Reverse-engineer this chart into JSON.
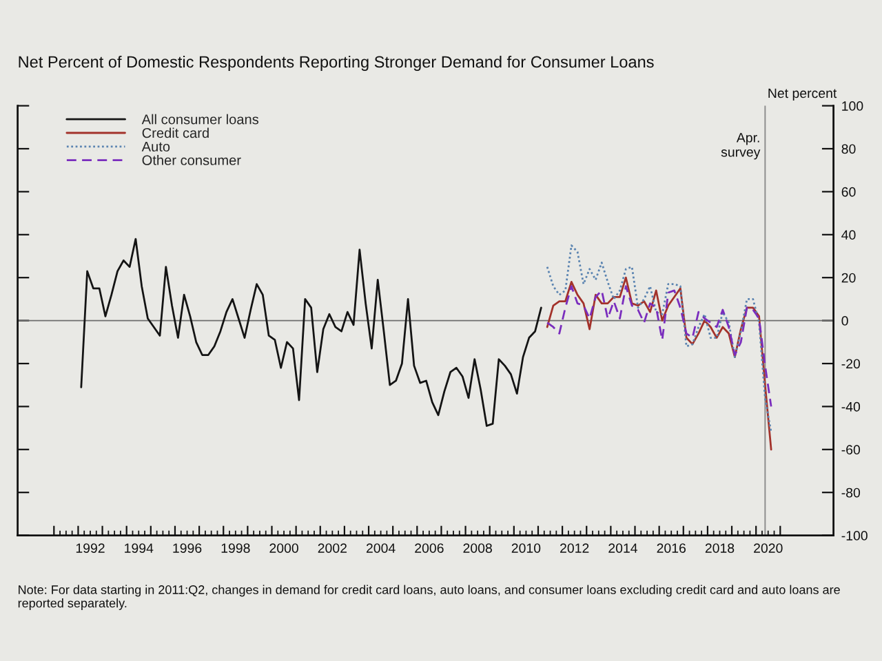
{
  "chart_data": {
    "type": "line",
    "title": "Net Percent of Domestic Respondents Reporting Stronger Demand for Consumer Loans",
    "ylabel": "Net percent",
    "annotations": [
      "Note: For data starting in 2011:Q2, changes in demand for credit card loans, auto loans, and consumer loans excluding credit card and auto loans are reported separately."
    ],
    "xlim": [
      1989.5,
      2023.2
    ],
    "xticks": [
      {
        "value": 1991,
        "label": null
      },
      {
        "value": 1991.25,
        "label": null
      },
      {
        "value": 1991.5,
        "label": null
      },
      {
        "value": 1991.75,
        "label": null
      },
      {
        "value": 1992,
        "label": null
      },
      {
        "value": 1992.25,
        "label": null
      },
      {
        "value": 1992.5,
        "label": "1992"
      },
      {
        "value": 1992.75,
        "label": null
      },
      {
        "value": 1993,
        "label": null
      },
      {
        "value": 1993.25,
        "label": null
      },
      {
        "value": 1993.5,
        "label": null
      },
      {
        "value": 1993.75,
        "label": null
      },
      {
        "value": 1994,
        "label": null
      },
      {
        "value": 1994.25,
        "label": null
      },
      {
        "value": 1994.5,
        "label": "1994"
      },
      {
        "value": 1994.75,
        "label": null
      },
      {
        "value": 1995,
        "label": null
      },
      {
        "value": 1995.25,
        "label": null
      },
      {
        "value": 1995.5,
        "label": null
      },
      {
        "value": 1995.75,
        "label": null
      },
      {
        "value": 1996,
        "label": null
      },
      {
        "value": 1996.25,
        "label": null
      },
      {
        "value": 1996.5,
        "label": "1996"
      },
      {
        "value": 1996.75,
        "label": null
      },
      {
        "value": 1997,
        "label": null
      },
      {
        "value": 1997.25,
        "label": null
      },
      {
        "value": 1997.5,
        "label": null
      },
      {
        "value": 1997.75,
        "label": null
      },
      {
        "value": 1998,
        "label": null
      },
      {
        "value": 1998.25,
        "label": null
      },
      {
        "value": 1998.5,
        "label": "1998"
      },
      {
        "value": 1998.75,
        "label": null
      },
      {
        "value": 1999,
        "label": null
      },
      {
        "value": 1999.25,
        "label": null
      },
      {
        "value": 1999.5,
        "label": null
      },
      {
        "value": 1999.75,
        "label": null
      },
      {
        "value": 2000,
        "label": null
      },
      {
        "value": 2000.25,
        "label": null
      },
      {
        "value": 2000.5,
        "label": "2000"
      },
      {
        "value": 2000.75,
        "label": null
      },
      {
        "value": 2001,
        "label": null
      },
      {
        "value": 2001.25,
        "label": null
      },
      {
        "value": 2001.5,
        "label": null
      },
      {
        "value": 2001.75,
        "label": null
      },
      {
        "value": 2002,
        "label": null
      },
      {
        "value": 2002.25,
        "label": null
      },
      {
        "value": 2002.5,
        "label": "2002"
      },
      {
        "value": 2002.75,
        "label": null
      },
      {
        "value": 2003,
        "label": null
      },
      {
        "value": 2003.25,
        "label": null
      },
      {
        "value": 2003.5,
        "label": null
      },
      {
        "value": 2003.75,
        "label": null
      },
      {
        "value": 2004,
        "label": null
      },
      {
        "value": 2004.25,
        "label": null
      },
      {
        "value": 2004.5,
        "label": "2004"
      },
      {
        "value": 2004.75,
        "label": null
      },
      {
        "value": 2005,
        "label": null
      },
      {
        "value": 2005.25,
        "label": null
      },
      {
        "value": 2005.5,
        "label": null
      },
      {
        "value": 2005.75,
        "label": null
      },
      {
        "value": 2006,
        "label": null
      },
      {
        "value": 2006.25,
        "label": null
      },
      {
        "value": 2006.5,
        "label": "2006"
      },
      {
        "value": 2006.75,
        "label": null
      },
      {
        "value": 2007,
        "label": null
      },
      {
        "value": 2007.25,
        "label": null
      },
      {
        "value": 2007.5,
        "label": null
      },
      {
        "value": 2007.75,
        "label": null
      },
      {
        "value": 2008,
        "label": null
      },
      {
        "value": 2008.25,
        "label": null
      },
      {
        "value": 2008.5,
        "label": "2008"
      },
      {
        "value": 2008.75,
        "label": null
      },
      {
        "value": 2009,
        "label": null
      },
      {
        "value": 2009.25,
        "label": null
      },
      {
        "value": 2009.5,
        "label": null
      },
      {
        "value": 2009.75,
        "label": null
      },
      {
        "value": 2010,
        "label": null
      },
      {
        "value": 2010.25,
        "label": null
      },
      {
        "value": 2010.5,
        "label": "2010"
      },
      {
        "value": 2010.75,
        "label": null
      },
      {
        "value": 2011,
        "label": null
      },
      {
        "value": 2011.25,
        "label": null
      },
      {
        "value": 2011.5,
        "label": null
      },
      {
        "value": 2011.75,
        "label": null
      },
      {
        "value": 2012,
        "label": null
      },
      {
        "value": 2012.25,
        "label": null
      },
      {
        "value": 2012.5,
        "label": "2012"
      },
      {
        "value": 2012.75,
        "label": null
      },
      {
        "value": 2013,
        "label": null
      },
      {
        "value": 2013.25,
        "label": null
      },
      {
        "value": 2013.5,
        "label": null
      },
      {
        "value": 2013.75,
        "label": null
      },
      {
        "value": 2014,
        "label": null
      },
      {
        "value": 2014.25,
        "label": null
      },
      {
        "value": 2014.5,
        "label": "2014"
      },
      {
        "value": 2014.75,
        "label": null
      },
      {
        "value": 2015,
        "label": null
      },
      {
        "value": 2015.25,
        "label": null
      },
      {
        "value": 2015.5,
        "label": null
      },
      {
        "value": 2015.75,
        "label": null
      },
      {
        "value": 2016,
        "label": null
      },
      {
        "value": 2016.25,
        "label": null
      },
      {
        "value": 2016.5,
        "label": "2016"
      },
      {
        "value": 2016.75,
        "label": null
      },
      {
        "value": 2017,
        "label": null
      },
      {
        "value": 2017.25,
        "label": null
      },
      {
        "value": 2017.5,
        "label": null
      },
      {
        "value": 2017.75,
        "label": null
      },
      {
        "value": 2018,
        "label": null
      },
      {
        "value": 2018.25,
        "label": null
      },
      {
        "value": 2018.5,
        "label": "2018"
      },
      {
        "value": 2018.75,
        "label": null
      },
      {
        "value": 2019,
        "label": null
      },
      {
        "value": 2019.25,
        "label": null
      },
      {
        "value": 2019.5,
        "label": null
      },
      {
        "value": 2019.75,
        "label": null
      },
      {
        "value": 2020,
        "label": null
      },
      {
        "value": 2020.25,
        "label": null
      },
      {
        "value": 2020.5,
        "label": "2020"
      },
      {
        "value": 2020.75,
        "label": null
      },
      {
        "value": 2021,
        "label": null
      }
    ],
    "ylim": [
      -100,
      100
    ],
    "yticks": [
      -100,
      -80,
      -60,
      -40,
      -20,
      0,
      20,
      40,
      60,
      80,
      100
    ],
    "legend": "top left",
    "ref_lines": [
      {
        "axis": "y",
        "value": 0,
        "color": "#6e6e6e"
      },
      {
        "axis": "x",
        "value": 2020.375,
        "label": "Apr.\nsurvey",
        "color": "#8c8c8c"
      }
    ],
    "series": [
      {
        "name": "All consumer loans",
        "color": "#141414",
        "line_style": "solid",
        "x": [
          1992.125,
          1992.375,
          1992.625,
          1992.875,
          1993.125,
          1993.375,
          1993.625,
          1993.875,
          1994.125,
          1994.375,
          1994.625,
          1994.875,
          1995.125,
          1995.375,
          1995.625,
          1995.875,
          1996.125,
          1996.375,
          1996.625,
          1996.875,
          1997.125,
          1997.375,
          1997.625,
          1997.875,
          1998.125,
          1998.375,
          1998.625,
          1998.875,
          1999.125,
          1999.375,
          1999.625,
          1999.875,
          2000.125,
          2000.375,
          2000.625,
          2000.875,
          2001.125,
          2001.375,
          2001.625,
          2001.875,
          2002.125,
          2002.375,
          2002.625,
          2002.875,
          2003.125,
          2003.375,
          2003.625,
          2003.875,
          2004.125,
          2004.375,
          2004.625,
          2004.875,
          2005.125,
          2005.375,
          2005.625,
          2005.875,
          2006.125,
          2006.375,
          2006.625,
          2006.875,
          2007.125,
          2007.375,
          2007.625,
          2007.875,
          2008.125,
          2008.375,
          2008.625,
          2008.875,
          2009.125,
          2009.375,
          2009.625,
          2009.875,
          2010.125,
          2010.375,
          2010.625,
          2010.875,
          2011.125
        ],
        "values": [
          -31,
          23,
          15,
          15,
          2,
          12,
          23,
          28,
          25,
          38,
          16,
          1,
          -3,
          -7,
          25,
          7,
          -8,
          12,
          2,
          -10,
          -16,
          -16,
          -12,
          -5,
          4,
          10,
          1,
          -8,
          5,
          17,
          12,
          -7,
          -9,
          -22,
          -10,
          -13,
          -37,
          10,
          6,
          -24,
          -4,
          3,
          -3,
          -5,
          4,
          -2,
          33,
          8,
          -13,
          19,
          -5,
          -30,
          -28,
          -20,
          10,
          -21,
          -29,
          -28,
          -38,
          -44,
          -33,
          -24,
          -22,
          -26,
          -36,
          -18,
          -32,
          -49,
          -48,
          -18,
          -21,
          -25,
          -34,
          -17,
          -8,
          -5,
          6
        ]
      },
      {
        "name": "Credit card",
        "color": "#a3322b",
        "line_style": "solid",
        "x": [
          2011.375,
          2011.625,
          2011.875,
          2012.125,
          2012.375,
          2012.625,
          2012.875,
          2013.125,
          2013.375,
          2013.625,
          2013.875,
          2014.125,
          2014.375,
          2014.625,
          2014.875,
          2015.125,
          2015.375,
          2015.625,
          2015.875,
          2016.125,
          2016.375,
          2016.625,
          2016.875,
          2017.125,
          2017.375,
          2017.625,
          2017.875,
          2018.125,
          2018.375,
          2018.625,
          2018.875,
          2019.125,
          2019.375,
          2019.625,
          2019.875,
          2020.125,
          2020.375,
          2020.625
        ],
        "values": [
          -3,
          7,
          9,
          9,
          18,
          12,
          8,
          -4,
          12,
          8,
          8,
          11,
          11,
          20,
          8,
          7,
          9,
          4,
          14,
          0,
          7,
          11,
          15,
          -8,
          -11,
          -6,
          0,
          -3,
          -8,
          -3,
          -6,
          -17,
          -4,
          6,
          6,
          2,
          -30,
          -60
        ]
      },
      {
        "name": "Auto",
        "color": "#5b84b1",
        "line_style": "dotted",
        "x": [
          2011.375,
          2011.625,
          2011.875,
          2012.125,
          2012.375,
          2012.625,
          2012.875,
          2013.125,
          2013.375,
          2013.625,
          2013.875,
          2014.125,
          2014.375,
          2014.625,
          2014.875,
          2015.125,
          2015.375,
          2015.625,
          2015.875,
          2016.125,
          2016.375,
          2016.625,
          2016.875,
          2017.125,
          2017.375,
          2017.625,
          2017.875,
          2018.125,
          2018.375,
          2018.625,
          2018.875,
          2019.125,
          2019.375,
          2019.625,
          2019.875,
          2020.125,
          2020.375,
          2020.625
        ],
        "values": [
          25,
          16,
          12,
          14,
          35,
          32,
          17,
          24,
          19,
          27,
          18,
          10,
          14,
          24,
          25,
          6,
          10,
          16,
          4,
          3,
          17,
          17,
          16,
          -12,
          -11,
          -3,
          3,
          -8,
          -8,
          4,
          -1,
          -17,
          -5,
          10,
          10,
          -1,
          -36,
          -52
        ]
      },
      {
        "name": "Other consumer",
        "color": "#7a2dbd",
        "line_style": "dashed",
        "x": [
          2011.375,
          2011.625,
          2011.875,
          2012.125,
          2012.375,
          2012.625,
          2012.875,
          2013.125,
          2013.375,
          2013.625,
          2013.875,
          2014.125,
          2014.375,
          2014.625,
          2014.875,
          2015.125,
          2015.375,
          2015.625,
          2015.875,
          2016.125,
          2016.375,
          2016.625,
          2016.875,
          2017.125,
          2017.375,
          2017.625,
          2017.875,
          2018.125,
          2018.375,
          2018.625,
          2018.875,
          2019.125,
          2019.375,
          2019.625,
          2019.875,
          2020.125,
          2020.375,
          2020.625
        ],
        "values": [
          -1,
          -3,
          -6,
          6,
          16,
          8,
          7,
          1,
          11,
          14,
          1,
          9,
          1,
          16,
          7,
          5,
          -1,
          8,
          6,
          -9,
          13,
          14,
          6,
          -6,
          -8,
          4,
          1,
          -1,
          -3,
          5,
          -3,
          -16,
          -10,
          6,
          5,
          1,
          -21,
          -40
        ]
      }
    ]
  }
}
